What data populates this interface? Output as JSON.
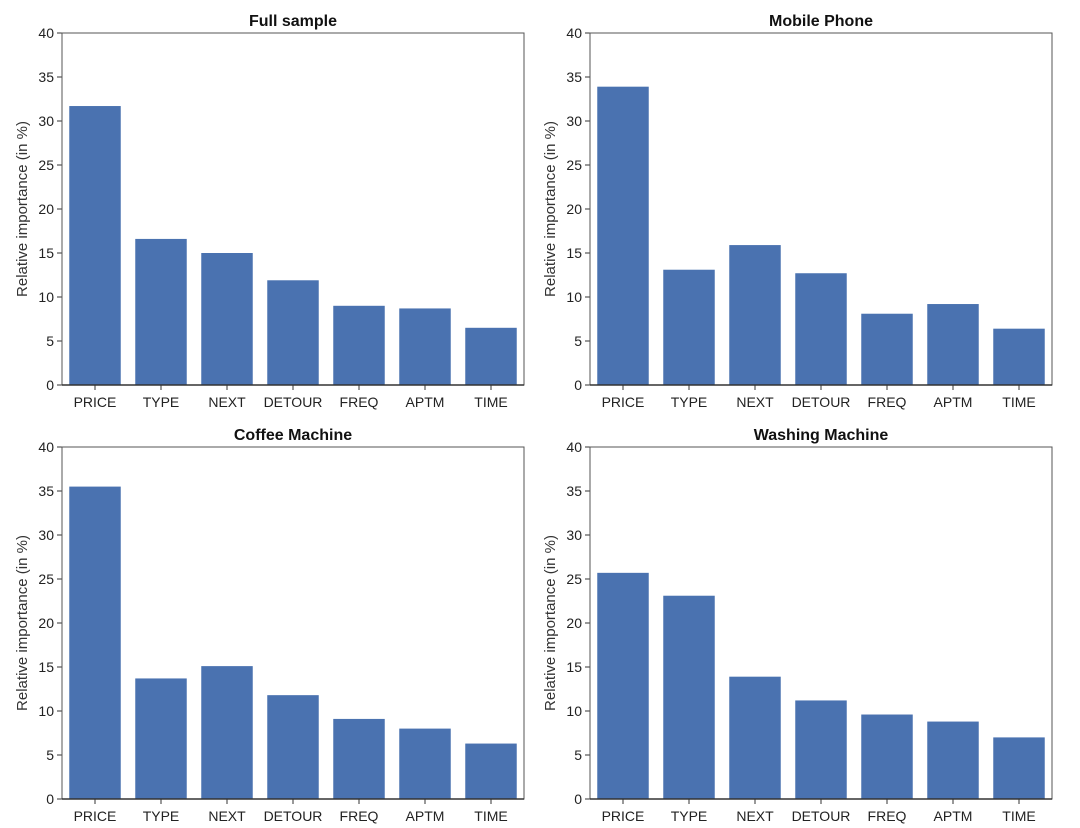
{
  "chart_data": [
    {
      "type": "bar",
      "title": "Full sample",
      "ylabel": "Relative importance (in %)",
      "xlabel": "",
      "categories": [
        "PRICE",
        "TYPE",
        "NEXT",
        "DETOUR",
        "FREQ",
        "APTM",
        "TIME"
      ],
      "values": [
        31.7,
        16.6,
        15.0,
        11.9,
        9.0,
        8.7,
        6.5
      ],
      "ylim": [
        0,
        40
      ],
      "yticks": [
        0,
        5,
        10,
        15,
        20,
        25,
        30,
        35,
        40
      ],
      "color": "#4a72b0",
      "grid": false
    },
    {
      "type": "bar",
      "title": "Mobile Phone",
      "ylabel": "Relative importance (in %)",
      "xlabel": "",
      "categories": [
        "PRICE",
        "TYPE",
        "NEXT",
        "DETOUR",
        "FREQ",
        "APTM",
        "TIME"
      ],
      "values": [
        33.9,
        13.1,
        15.9,
        12.7,
        8.1,
        9.2,
        6.4
      ],
      "ylim": [
        0,
        40
      ],
      "yticks": [
        0,
        5,
        10,
        15,
        20,
        25,
        30,
        35,
        40
      ],
      "color": "#4a72b0",
      "grid": false
    },
    {
      "type": "bar",
      "title": "Coffee Machine",
      "ylabel": "Relative importance (in %)",
      "xlabel": "",
      "categories": [
        "PRICE",
        "TYPE",
        "NEXT",
        "DETOUR",
        "FREQ",
        "APTM",
        "TIME"
      ],
      "values": [
        35.5,
        13.7,
        15.1,
        11.8,
        9.1,
        8.0,
        6.3
      ],
      "ylim": [
        0,
        40
      ],
      "yticks": [
        0,
        5,
        10,
        15,
        20,
        25,
        30,
        35,
        40
      ],
      "color": "#4a72b0",
      "grid": false
    },
    {
      "type": "bar",
      "title": "Washing Machine",
      "ylabel": "Relative importance (in %)",
      "xlabel": "",
      "categories": [
        "PRICE",
        "TYPE",
        "NEXT",
        "DETOUR",
        "FREQ",
        "APTM",
        "TIME"
      ],
      "values": [
        25.7,
        23.1,
        13.9,
        11.2,
        9.6,
        8.8,
        7.0
      ],
      "ylim": [
        0,
        40
      ],
      "yticks": [
        0,
        5,
        10,
        15,
        20,
        25,
        30,
        35,
        40
      ],
      "color": "#4a72b0",
      "grid": false
    }
  ]
}
